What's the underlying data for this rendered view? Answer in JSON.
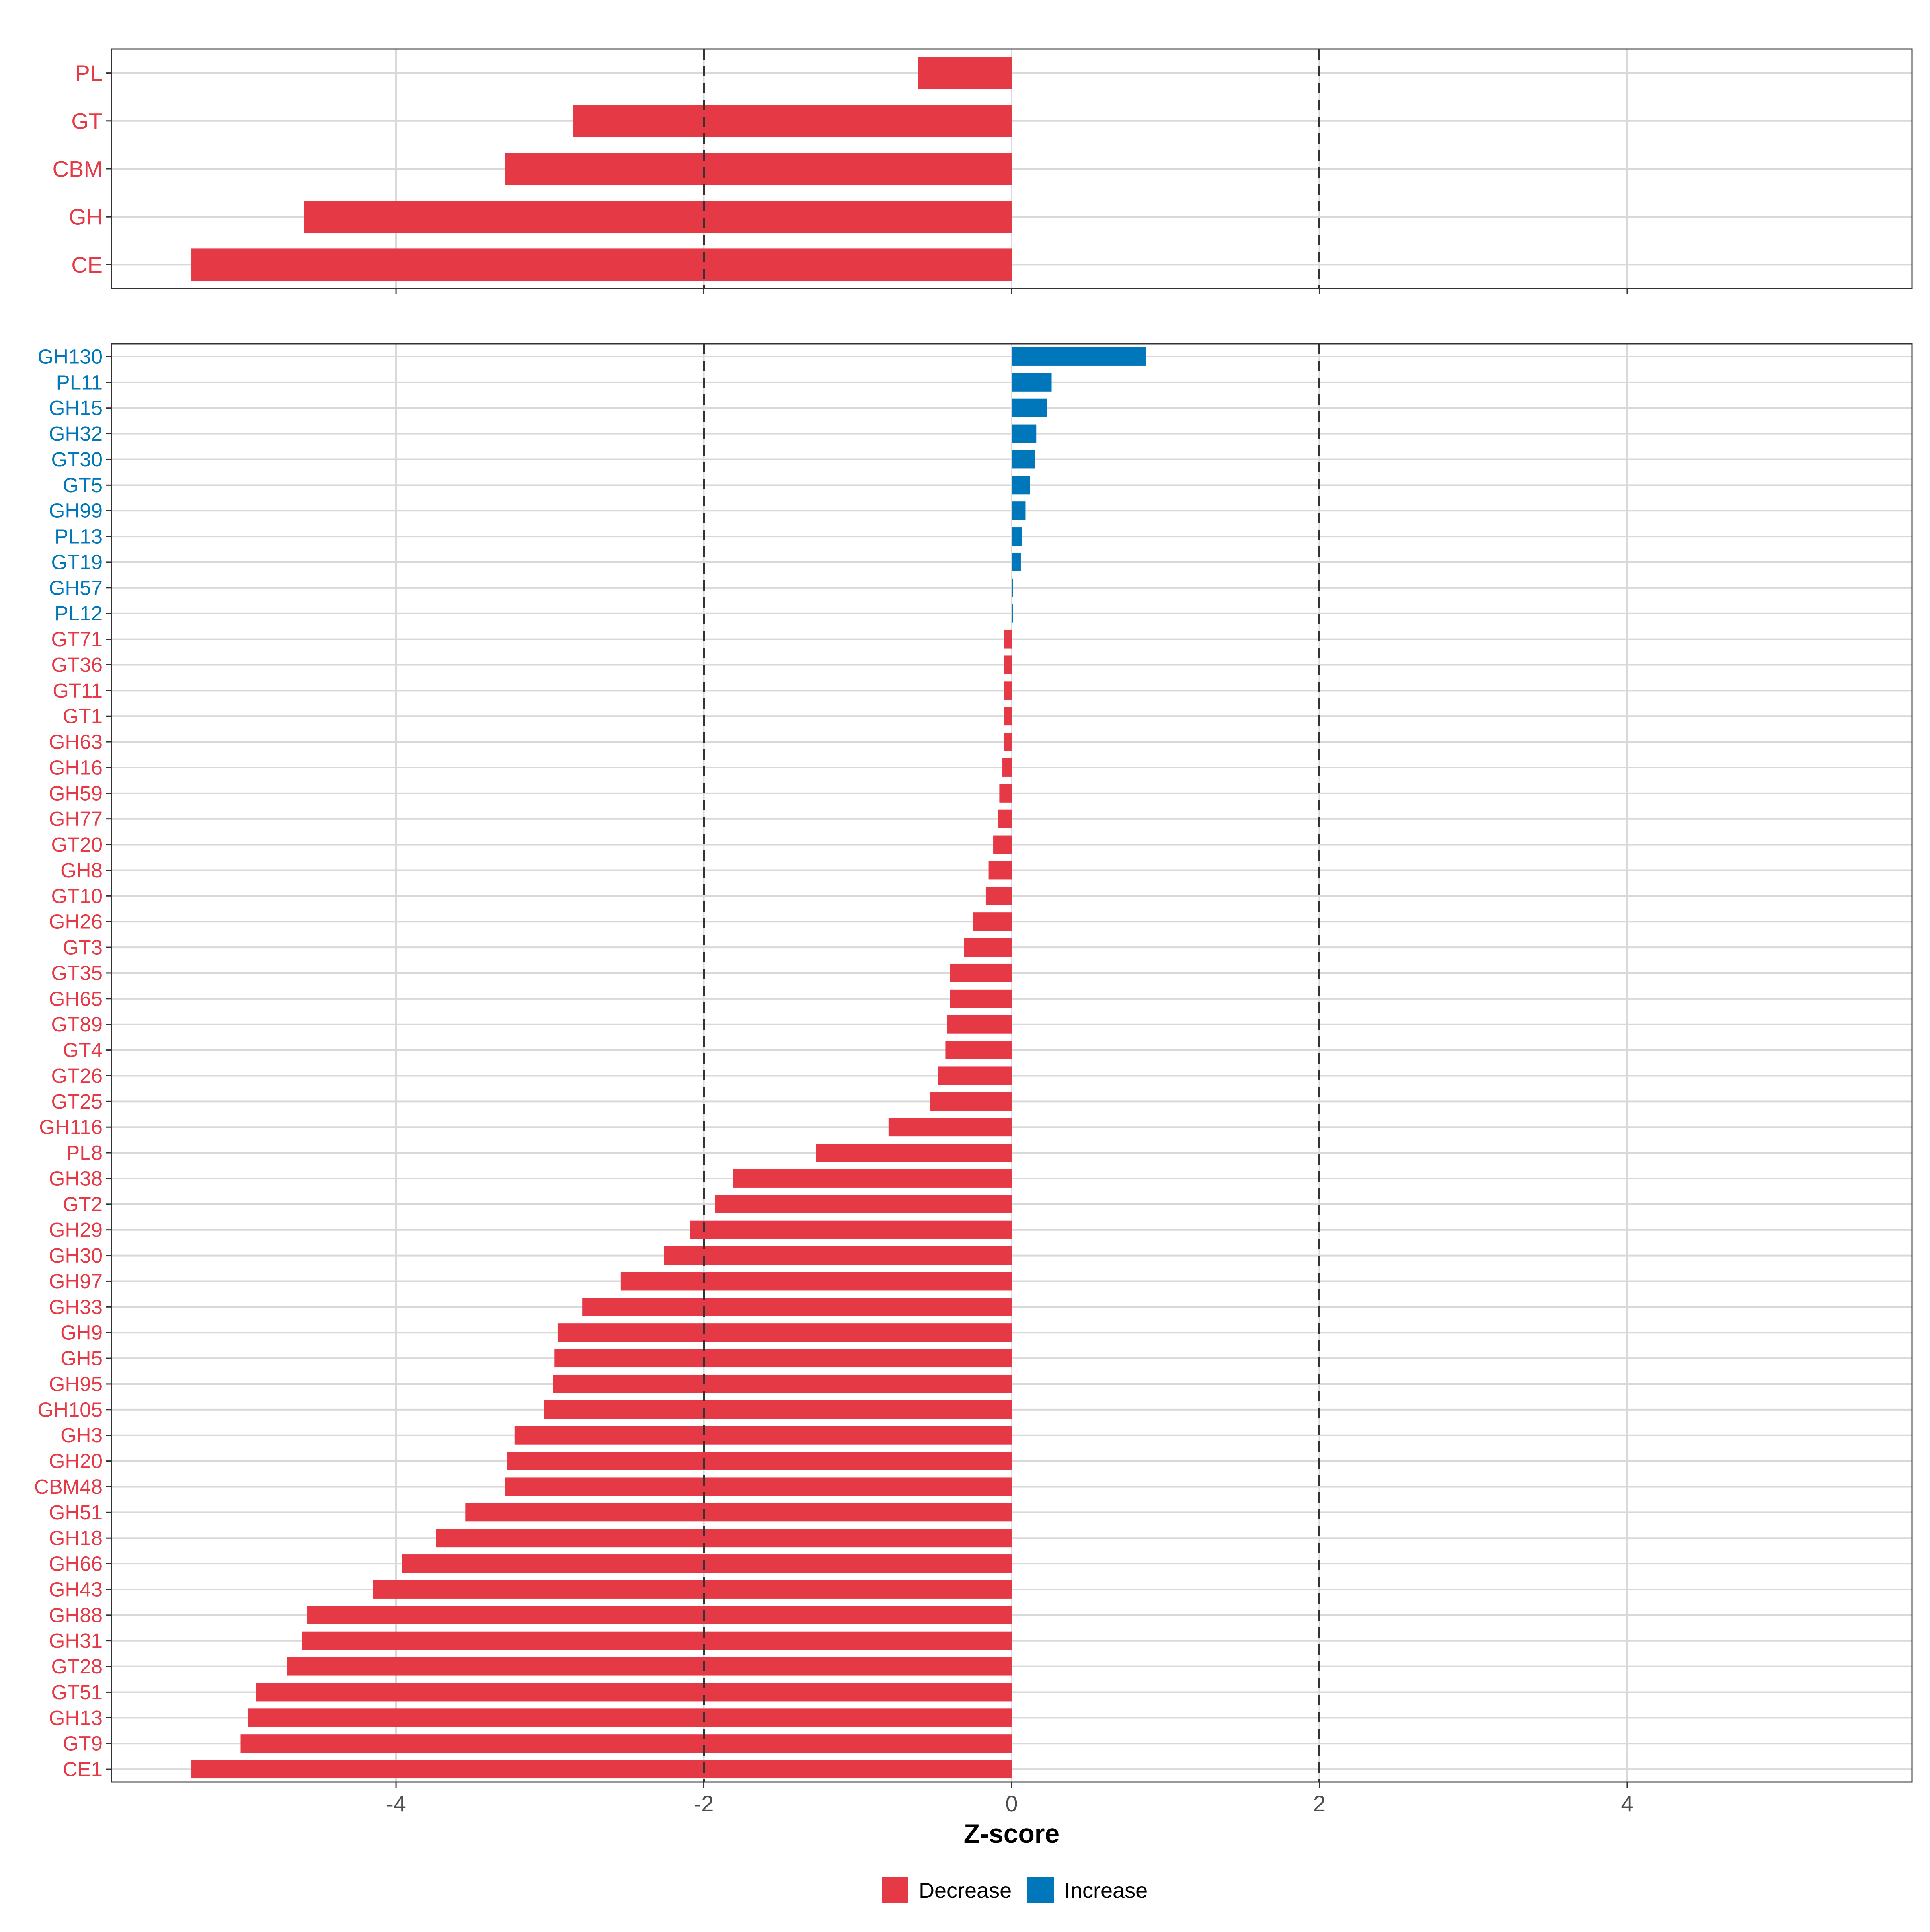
{
  "colors": {
    "decrease": "#E63946",
    "increase": "#0077BB",
    "grid": "#D9D9D9",
    "ref_line": "#333333",
    "axis_text": "#4D4D4D",
    "panel_border": "#333333"
  },
  "chart_data": [
    {
      "type": "bar",
      "orientation": "horizontal",
      "panel": "top",
      "categories": [
        "PL",
        "GT",
        "CBM",
        "GH",
        "CE"
      ],
      "values": [
        -0.61,
        -2.85,
        -3.29,
        -4.6,
        -5.33
      ],
      "direction": [
        "Decrease",
        "Decrease",
        "Decrease",
        "Decrease",
        "Decrease"
      ],
      "xlim": [
        -5.85,
        5.85
      ],
      "x_ticks": [
        -4,
        -2,
        0,
        2,
        4
      ],
      "reference_lines": [
        -2,
        2
      ],
      "grid": true
    },
    {
      "type": "bar",
      "orientation": "horizontal",
      "panel": "bottom",
      "categories": [
        "GH130",
        "PL11",
        "GH15",
        "GH32",
        "GT30",
        "GT5",
        "GH99",
        "PL13",
        "GT19",
        "GH57",
        "PL12",
        "GT71",
        "GT36",
        "GT11",
        "GT1",
        "GH63",
        "GH16",
        "GH59",
        "GH77",
        "GT20",
        "GH8",
        "GT10",
        "GH26",
        "GT3",
        "GT35",
        "GH65",
        "GT89",
        "GT4",
        "GT26",
        "GT25",
        "GH116",
        "PL8",
        "GH38",
        "GT2",
        "GH29",
        "GH30",
        "GH97",
        "GH33",
        "GH9",
        "GH5",
        "GH95",
        "GH105",
        "GH3",
        "GH20",
        "CBM48",
        "GH51",
        "GH18",
        "GH66",
        "GH43",
        "GH88",
        "GH31",
        "GT28",
        "GT51",
        "GH13",
        "GT9",
        "CE1"
      ],
      "values": [
        0.87,
        0.26,
        0.23,
        0.16,
        0.15,
        0.12,
        0.09,
        0.07,
        0.06,
        0.01,
        0.01,
        -0.05,
        -0.05,
        -0.05,
        -0.05,
        -0.05,
        -0.06,
        -0.08,
        -0.09,
        -0.12,
        -0.15,
        -0.17,
        -0.25,
        -0.31,
        -0.4,
        -0.4,
        -0.42,
        -0.43,
        -0.48,
        -0.53,
        -0.8,
        -1.27,
        -1.81,
        -1.93,
        -2.09,
        -2.26,
        -2.54,
        -2.79,
        -2.95,
        -2.97,
        -2.98,
        -3.04,
        -3.23,
        -3.28,
        -3.29,
        -3.55,
        -3.74,
        -3.96,
        -4.15,
        -4.58,
        -4.61,
        -4.71,
        -4.91,
        -4.96,
        -5.01,
        -5.33
      ],
      "direction": [
        "Increase",
        "Increase",
        "Increase",
        "Increase",
        "Increase",
        "Increase",
        "Increase",
        "Increase",
        "Increase",
        "Increase",
        "Increase",
        "Decrease",
        "Decrease",
        "Decrease",
        "Decrease",
        "Decrease",
        "Decrease",
        "Decrease",
        "Decrease",
        "Decrease",
        "Decrease",
        "Decrease",
        "Decrease",
        "Decrease",
        "Decrease",
        "Decrease",
        "Decrease",
        "Decrease",
        "Decrease",
        "Decrease",
        "Decrease",
        "Decrease",
        "Decrease",
        "Decrease",
        "Decrease",
        "Decrease",
        "Decrease",
        "Decrease",
        "Decrease",
        "Decrease",
        "Decrease",
        "Decrease",
        "Decrease",
        "Decrease",
        "Decrease",
        "Decrease",
        "Decrease",
        "Decrease",
        "Decrease",
        "Decrease",
        "Decrease",
        "Decrease",
        "Decrease",
        "Decrease",
        "Decrease",
        "Decrease"
      ],
      "xlim": [
        -5.85,
        5.85
      ],
      "x_ticks": [
        -4,
        -2,
        0,
        2,
        4
      ],
      "x_tick_labels": [
        "-4",
        "-2",
        "0",
        "2",
        "4"
      ],
      "xlabel": "Z-score",
      "reference_lines": [
        -2,
        2
      ],
      "grid": true
    }
  ],
  "legend": {
    "position": "bottom",
    "items": [
      {
        "label": "Decrease",
        "color": "#E63946"
      },
      {
        "label": "Increase",
        "color": "#0077BB"
      }
    ]
  }
}
